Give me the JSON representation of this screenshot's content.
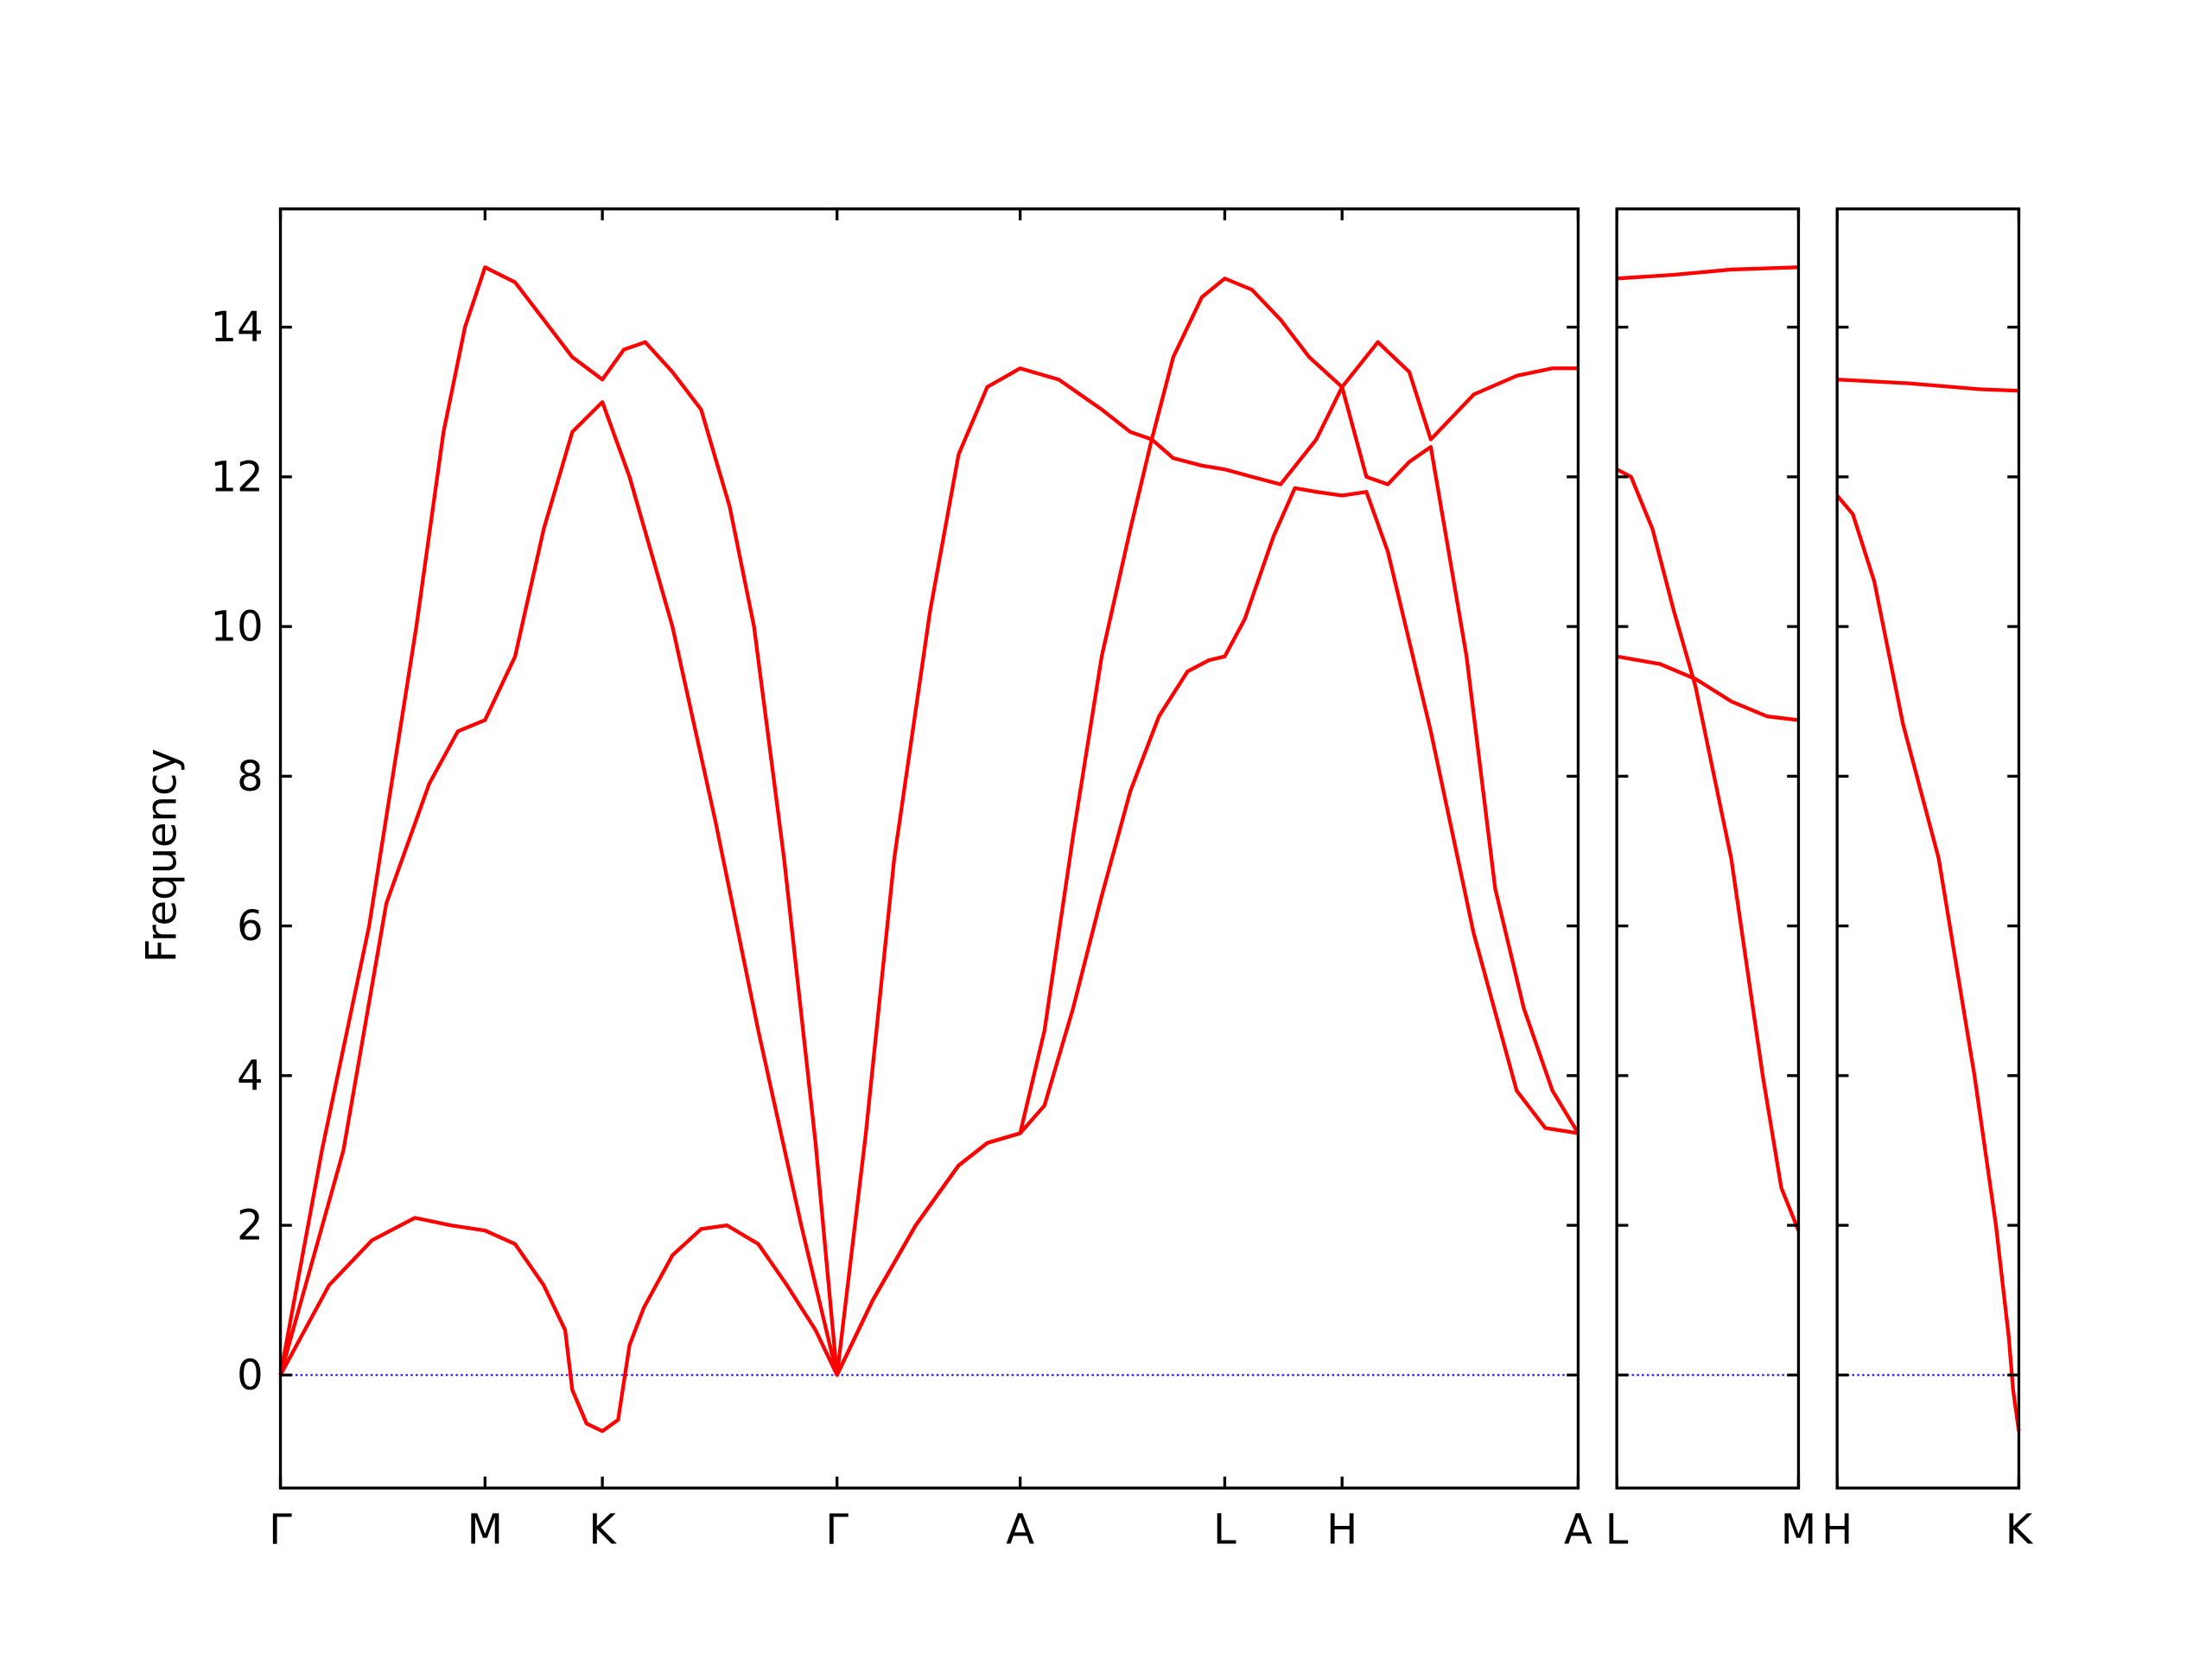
{
  "chart_data": [
    {
      "type": "line",
      "ylabel": "Frequency",
      "xlim": [
        0,
        9.07
      ],
      "ylim": [
        -1.51,
        15.58
      ],
      "xticks": [
        {
          "value": 0,
          "label": "Γ"
        },
        {
          "value": 1.43,
          "label": "M"
        },
        {
          "value": 2.25,
          "label": "K"
        },
        {
          "value": 3.89,
          "label": "Γ"
        },
        {
          "value": 5.17,
          "label": "A"
        },
        {
          "value": 6.6,
          "label": "L"
        },
        {
          "value": 7.42,
          "label": "H"
        },
        {
          "value": 9.07,
          "label": "A"
        }
      ],
      "yticks": [
        0,
        2,
        4,
        6,
        8,
        10,
        12,
        14
      ],
      "ytick_labels": true,
      "zero_line": true,
      "zero_line_color": "#0000ff",
      "series": [
        {
          "color": "#ff0000",
          "x": [
            0,
            0.29,
            0.62,
            0.95,
            1.14,
            1.29,
            1.43,
            1.64,
            1.84,
            2.04,
            2.25,
            2.4,
            2.55,
            2.74,
            2.94,
            3.14,
            3.31,
            3.52,
            3.74,
            3.89,
            4.09,
            4.29,
            4.54,
            4.74,
            4.94,
            5.17,
            5.44,
            5.74,
            5.94,
            6.09,
            6.24,
            6.44,
            6.6,
            6.79,
            6.99,
            7.19,
            7.42,
            7.67,
            7.89,
            8.04,
            8.34,
            8.64,
            8.89,
            9.07
          ],
          "values": [
            0,
            3,
            6,
            10,
            12.6,
            14,
            14.8,
            14.6,
            14.1,
            13.6,
            13.3,
            13.7,
            13.8,
            13.4,
            12.9,
            11.6,
            10.0,
            6.9,
            3.1,
            0,
            3.2,
            6.9,
            10.2,
            12.3,
            13.2,
            13.45,
            13.3,
            12.9,
            12.6,
            12.5,
            13.6,
            14.4,
            14.65,
            14.5,
            14.1,
            13.6,
            13.2,
            13.8,
            13.4,
            12.5,
            13.1,
            13.35,
            13.45,
            13.45
          ]
        },
        {
          "color": "#ff0000",
          "x": [
            0,
            0.44,
            0.74,
            1.04,
            1.24,
            1.43,
            1.64,
            1.84,
            2.04,
            2.25,
            2.44,
            2.74,
            3.04,
            3.34,
            3.64,
            3.89,
            4.14,
            4.44,
            4.74,
            4.94,
            5.17,
            5.34,
            5.54,
            5.74,
            5.94,
            6.09,
            6.24,
            6.44,
            6.6,
            6.79,
            6.99,
            7.24,
            7.42,
            7.59,
            7.74,
            7.89,
            8.04,
            8.29,
            8.49,
            8.69,
            8.89,
            9.07
          ],
          "values": [
            0,
            3,
            6.3,
            7.9,
            8.6,
            8.75,
            9.6,
            11.3,
            12.6,
            13.0,
            12.0,
            10.0,
            7.4,
            4.6,
            2.0,
            0,
            1.0,
            2.0,
            2.8,
            3.1,
            3.23,
            4.6,
            7.2,
            9.6,
            11.3,
            12.5,
            12.25,
            12.15,
            12.1,
            12.0,
            11.9,
            12.5,
            13.2,
            12.0,
            11.9,
            12.2,
            12.4,
            9.6,
            6.5,
            4.9,
            3.8,
            3.23
          ]
        },
        {
          "color": "#ff0000",
          "x": [
            0,
            0.34,
            0.64,
            0.94,
            1.19,
            1.43,
            1.64,
            1.84,
            1.99,
            2.04,
            2.14,
            2.25,
            2.36,
            2.44,
            2.54,
            2.74,
            2.94,
            3.12,
            3.34,
            3.54,
            3.74,
            3.89,
            4.14,
            4.44,
            4.74,
            4.94,
            5.17,
            5.34,
            5.54,
            5.74,
            5.94,
            6.14,
            6.34,
            6.49,
            6.6,
            6.74,
            6.94,
            7.09,
            7.24,
            7.42,
            7.59,
            7.74,
            8.04,
            8.34,
            8.64,
            8.84,
            9.07
          ],
          "values": [
            0,
            1.2,
            1.8,
            2.1,
            2.0,
            1.93,
            1.75,
            1.2,
            0.6,
            -0.2,
            -0.65,
            -0.75,
            -0.6,
            0.4,
            0.9,
            1.6,
            1.95,
            2.0,
            1.75,
            1.2,
            0.6,
            0,
            1.0,
            2.0,
            2.8,
            3.1,
            3.23,
            3.6,
            4.9,
            6.4,
            7.8,
            8.8,
            9.4,
            9.55,
            9.6,
            10.1,
            11.2,
            11.85,
            11.8,
            11.75,
            11.8,
            11.0,
            8.6,
            5.9,
            3.8,
            3.3,
            3.23
          ]
        }
      ]
    },
    {
      "type": "line",
      "xlim": [
        0,
        1.27
      ],
      "ylim": [
        -1.51,
        15.58
      ],
      "xticks": [
        {
          "value": 0,
          "label": "L"
        },
        {
          "value": 1.27,
          "label": "M"
        }
      ],
      "yticks": [
        0,
        2,
        4,
        6,
        8,
        10,
        12,
        14
      ],
      "ytick_labels": false,
      "zero_line": true,
      "zero_line_color": "#0000ff",
      "series": [
        {
          "color": "#ff0000",
          "x": [
            0,
            0.4,
            0.8,
            1.27
          ],
          "values": [
            14.65,
            14.7,
            14.77,
            14.8
          ]
        },
        {
          "color": "#ff0000",
          "x": [
            0,
            0.1,
            0.25,
            0.4,
            0.55,
            0.8,
            1.02,
            1.15,
            1.27
          ],
          "values": [
            12.1,
            12.0,
            11.3,
            10.2,
            9.2,
            6.9,
            4.0,
            2.5,
            1.93
          ]
        },
        {
          "color": "#ff0000",
          "x": [
            0,
            0.3,
            0.55,
            0.8,
            1.05,
            1.27
          ],
          "values": [
            9.6,
            9.5,
            9.3,
            9.0,
            8.8,
            8.75
          ]
        }
      ]
    },
    {
      "type": "line",
      "xlim": [
        0,
        1.27
      ],
      "ylim": [
        -1.51,
        15.58
      ],
      "xticks": [
        {
          "value": 0,
          "label": "H"
        },
        {
          "value": 1.27,
          "label": "K"
        }
      ],
      "yticks": [
        0,
        2,
        4,
        6,
        8,
        10,
        12,
        14
      ],
      "ytick_labels": false,
      "zero_line": true,
      "zero_line_color": "#0000ff",
      "series": [
        {
          "color": "#ff0000",
          "x": [
            0,
            0.5,
            1.0,
            1.27
          ],
          "values": [
            13.3,
            13.25,
            13.17,
            13.15
          ]
        },
        {
          "color": "#ff0000",
          "x": [
            0,
            0.11,
            0.26,
            0.46,
            0.71,
            0.96,
            1.11,
            1.2,
            1.23,
            1.27
          ],
          "values": [
            11.75,
            11.5,
            10.6,
            8.7,
            6.9,
            4.0,
            2.0,
            0.5,
            -0.2,
            -0.75
          ]
        }
      ]
    }
  ]
}
